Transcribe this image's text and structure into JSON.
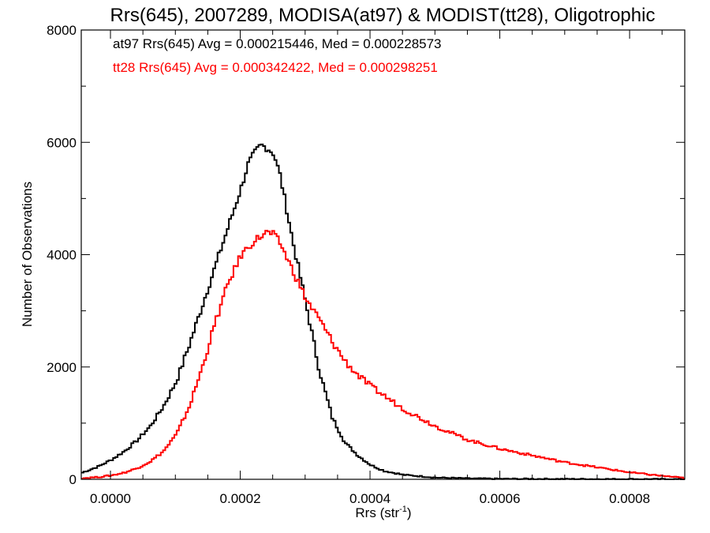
{
  "chart_data": {
    "type": "line",
    "title": "Rrs(645), 2007289, MODISA(at97) & MODIST(tt28), Oligotrophic",
    "xlabel": "Rrs (str",
    "xlabel_sup": "-1",
    "xlabel_tail": ")",
    "ylabel": "Number of Observations",
    "xlim": [
      -4.5e-05,
      0.000885
    ],
    "ylim": [
      0,
      8000
    ],
    "grid": false,
    "xticks": [
      {
        "value": 0.0,
        "label": "0.0000"
      },
      {
        "value": 0.0002,
        "label": "0.0002"
      },
      {
        "value": 0.0004,
        "label": "0.0004"
      },
      {
        "value": 0.0006,
        "label": "0.0006"
      },
      {
        "value": 0.0008,
        "label": "0.0008"
      }
    ],
    "yticks": [
      {
        "value": 0,
        "label": "0"
      },
      {
        "value": 2000,
        "label": "2000"
      },
      {
        "value": 4000,
        "label": "4000"
      },
      {
        "value": 6000,
        "label": "6000"
      },
      {
        "value": 8000,
        "label": "8000"
      }
    ],
    "annotations": [
      {
        "text": "at97 Rrs(645) Avg = 0.000215446, Med = 0.000228573",
        "color": "#000000"
      },
      {
        "text": "tt28 Rrs(645) Avg = 0.000342422, Med = 0.000298251",
        "color": "#ff0000"
      }
    ],
    "series": [
      {
        "color": "#000000",
        "step": true,
        "x": [
          -4.5e-05,
          -2e-05,
          0.0,
          2e-05,
          4e-05,
          6e-05,
          8e-05,
          0.0001,
          0.00012,
          0.00014,
          0.00016,
          0.00018,
          0.0002,
          0.00021,
          0.00022,
          0.00023,
          0.00024,
          0.00025,
          0.00026,
          0.00027,
          0.00028,
          0.0003,
          0.00032,
          0.00034,
          0.00036,
          0.00038,
          0.0004,
          0.00042,
          0.00045,
          0.0005,
          0.00055,
          0.0006,
          0.0007,
          0.0008,
          0.000885
        ],
        "y": [
          120,
          230,
          350,
          500,
          700,
          950,
          1300,
          1750,
          2400,
          3100,
          3800,
          4500,
          5200,
          5600,
          5800,
          5950,
          5900,
          5800,
          5400,
          4800,
          4200,
          3100,
          1950,
          1100,
          650,
          420,
          250,
          150,
          80,
          30,
          15,
          8,
          5,
          3,
          2
        ]
      },
      {
        "color": "#ff0000",
        "step": true,
        "x": [
          -4.5e-05,
          -2e-05,
          0.0,
          2e-05,
          4e-05,
          6e-05,
          8e-05,
          0.0001,
          0.00012,
          0.00014,
          0.00016,
          0.00018,
          0.0002,
          0.00022,
          0.00024,
          0.00025,
          0.00026,
          0.00027,
          0.00028,
          0.0003,
          0.00032,
          0.00034,
          0.00036,
          0.00038,
          0.0004,
          0.00045,
          0.0005,
          0.00055,
          0.0006,
          0.00065,
          0.0007,
          0.00075,
          0.0008,
          0.00085,
          0.000885
        ],
        "y": [
          20,
          40,
          70,
          120,
          200,
          320,
          500,
          800,
          1300,
          2000,
          2800,
          3500,
          4000,
          4250,
          4400,
          4350,
          4200,
          3950,
          3700,
          3200,
          2850,
          2450,
          2100,
          1850,
          1650,
          1250,
          940,
          700,
          540,
          420,
          300,
          210,
          120,
          60,
          20
        ]
      }
    ]
  }
}
